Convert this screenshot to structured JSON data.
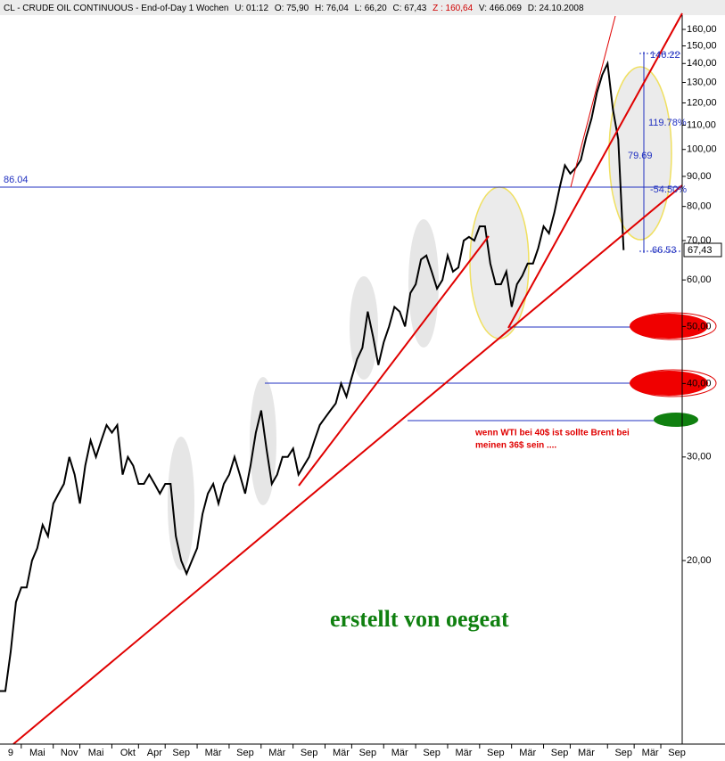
{
  "header": {
    "title": "CL - CRUDE OIL CONTINUOUS - End-of-Day 1 Wochen",
    "fields": [
      "U: 01:12",
      "O: 75,90",
      "H: 76,04",
      "L: 66,20",
      "C: 67,43"
    ],
    "z": "Z : 160,64",
    "fields2": [
      "V: 466.069",
      "D: 24.10.2008"
    ]
  },
  "chart_data": {
    "type": "line",
    "color": "#000000",
    "log_scale": true,
    "values": [
      12,
      12,
      14,
      17,
      18,
      18,
      20,
      21,
      23,
      22,
      25,
      26,
      27,
      30,
      28,
      25,
      29,
      32,
      30,
      32,
      34,
      33,
      34,
      28,
      30,
      29,
      27,
      27,
      28,
      27,
      26,
      27,
      27,
      22,
      20,
      19,
      20,
      21,
      24,
      26,
      27,
      25,
      27,
      28,
      30,
      28,
      26,
      29,
      33,
      36,
      31,
      27,
      28,
      30,
      30,
      31,
      28,
      29,
      30,
      32,
      34,
      35,
      36,
      37,
      40,
      38,
      41,
      44,
      46,
      53,
      48,
      43,
      47,
      50,
      54,
      53,
      50,
      57,
      59,
      65,
      66,
      62,
      58,
      60,
      66,
      62,
      63,
      70,
      71,
      70,
      74,
      74,
      64,
      59,
      59,
      62,
      54,
      59,
      61,
      64,
      64,
      68,
      74,
      72,
      78,
      86,
      94,
      91,
      93,
      96,
      105,
      113,
      125,
      134,
      140,
      117,
      104,
      67.43
    ],
    "xlim": [
      0,
      128
    ],
    "xticks": [
      {
        "value": 2,
        "label": "9"
      },
      {
        "value": 7,
        "label": "Mai"
      },
      {
        "value": 13,
        "label": "Nov"
      },
      {
        "value": 18,
        "label": "Mai"
      },
      {
        "value": 24,
        "label": "Okt"
      },
      {
        "value": 29,
        "label": "Apr"
      },
      {
        "value": 34,
        "label": "Sep"
      },
      {
        "value": 40,
        "label": "Mär"
      },
      {
        "value": 46,
        "label": "Sep"
      },
      {
        "value": 52,
        "label": "Mär"
      },
      {
        "value": 58,
        "label": "Sep"
      },
      {
        "value": 64,
        "label": "Mär"
      },
      {
        "value": 69,
        "label": "Sep"
      },
      {
        "value": 75,
        "label": "Mär"
      },
      {
        "value": 81,
        "label": "Sep"
      },
      {
        "value": 87,
        "label": "Mär"
      },
      {
        "value": 93,
        "label": "Sep"
      },
      {
        "value": 99,
        "label": "Mär"
      },
      {
        "value": 105,
        "label": "Sep"
      },
      {
        "value": 110,
        "label": "Mär"
      },
      {
        "value": 117,
        "label": "Sep"
      },
      {
        "value": 122,
        "label": "Mär"
      },
      {
        "value": 127,
        "label": "Sep"
      }
    ],
    "ylim": [
      9.75,
      168.6
    ],
    "yticks": [
      {
        "value": 20,
        "label": "20,00"
      },
      {
        "value": 30,
        "label": "30,00"
      },
      {
        "value": 40,
        "label": "40,00"
      },
      {
        "value": 50,
        "label": "50,00"
      },
      {
        "value": 60,
        "label": "60,00"
      },
      {
        "value": 70,
        "label": "70,00"
      },
      {
        "value": 80,
        "label": "80,00"
      },
      {
        "value": 90,
        "label": "90,00"
      },
      {
        "value": 100,
        "label": "100,00"
      },
      {
        "value": 110,
        "label": "110,00"
      },
      {
        "value": 120,
        "label": "120,00"
      },
      {
        "value": 130,
        "label": "130,00"
      },
      {
        "value": 140,
        "label": "140,00"
      },
      {
        "value": 150,
        "label": "150,00"
      },
      {
        "value": 160,
        "label": "160,00"
      }
    ],
    "last_price": "67,43",
    "annotations": [
      "86.04",
      "146.22",
      "119.78%",
      "79.69",
      "-54.50%",
      "66.53",
      "wenn WTI bei 40$ ist sollte Brent bei",
      "meinen 36$ sein ....",
      "erstellt von oegeat"
    ]
  }
}
